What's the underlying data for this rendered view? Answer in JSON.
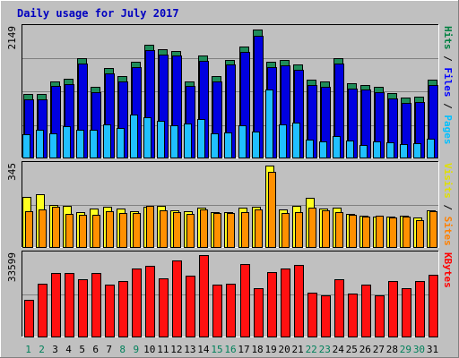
{
  "chart_data": {
    "type": "bar",
    "title": "Daily usage for July 2017",
    "days": [
      "1",
      "2",
      "3",
      "4",
      "5",
      "6",
      "7",
      "8",
      "9",
      "10",
      "11",
      "12",
      "13",
      "14",
      "15",
      "16",
      "17",
      "18",
      "19",
      "20",
      "21",
      "22",
      "23",
      "24",
      "25",
      "26",
      "27",
      "28",
      "29",
      "30",
      "31"
    ],
    "weekend_days": [
      "1",
      "2",
      "8",
      "9",
      "15",
      "16",
      "22",
      "23",
      "29",
      "30"
    ],
    "panels": [
      {
        "id": "hits-files-pages",
        "max_label": "2149",
        "ylim": [
          0,
          2149
        ],
        "legend": [
          {
            "text": "Pages",
            "color": "#00c0ff"
          },
          {
            "text": "Files",
            "color": "#0000ff"
          },
          {
            "text": "Hits",
            "color": "#008040"
          }
        ],
        "series": [
          {
            "name": "Hits",
            "color": "#1f8c5a",
            "values": [
              1054,
              1054,
              1274,
              1313,
              1657,
              1176,
              1489,
              1352,
              1591,
              1876,
              1809,
              1782,
              1274,
              1704,
              1361,
              1633,
              1846,
              2130,
              1591,
              1622,
              1556,
              1293,
              1273,
              1661,
              1233,
              1215,
              1176,
              1073,
              1000,
              1019,
              1294
            ]
          },
          {
            "name": "Files",
            "color": "#0000e0",
            "values": [
              966,
              966,
              1187,
              1225,
              1567,
              1088,
              1401,
              1264,
              1503,
              1788,
              1722,
              1695,
              1187,
              1617,
              1274,
              1546,
              1759,
              2036,
              1503,
              1534,
              1468,
              1206,
              1186,
              1573,
              1146,
              1127,
              1088,
              986,
              912,
              932,
              1206
            ]
          },
          {
            "name": "Pages",
            "color": "#20c0ff",
            "values": [
              386,
              465,
              396,
              526,
              464,
              465,
              555,
              493,
              723,
              669,
              618,
              533,
              571,
              639,
              408,
              416,
              534,
              426,
              1128,
              551,
              580,
              296,
              273,
              361,
              287,
              211,
              263,
              261,
              220,
              234,
              315
            ]
          }
        ]
      },
      {
        "id": "visits-sites",
        "max_label": "345",
        "ylim": [
          0,
          345
        ],
        "legend": [
          {
            "text": "Sites",
            "color": "#ff8000"
          },
          {
            "text": "Visits",
            "color": "#e0e000"
          }
        ],
        "series": [
          {
            "name": "Visits",
            "color": "#ffff20",
            "values": [
              212,
              222,
              178,
              173,
              146,
              162,
              172,
              163,
              151,
              172,
              176,
              156,
              151,
              166,
              148,
              148,
              166,
              171,
              345,
              161,
              176,
              207,
              162,
              166,
              139,
              133,
              128,
              129,
              133,
              124,
              155
            ]
          },
          {
            "name": "Sites",
            "color": "#ff9000",
            "values": [
              150,
              161,
              169,
              142,
              137,
              135,
              152,
              144,
              144,
              173,
              157,
              147,
              141,
              159,
              144,
              144,
              148,
              159,
              317,
              144,
              149,
              165,
              157,
              148,
              138,
              129,
              131,
              124,
              129,
              115,
              152
            ]
          }
        ]
      },
      {
        "id": "kbytes",
        "max_label": "33599",
        "ylim": [
          0,
          33599
        ],
        "legend": [
          {
            "text": "KBytes",
            "color": "#ff0000"
          }
        ],
        "series": [
          {
            "name": "KBytes",
            "color": "#ff1010",
            "values": [
              14955,
              21750,
              26180,
              26180,
              23455,
              26180,
              21325,
              22940,
              28220,
              28985,
              23880,
              31450,
              25245,
              33599,
              21325,
              21755,
              29920,
              19890,
              26520,
              27880,
              29410,
              17935,
              16915,
              23465,
              17680,
              21325,
              16915,
              22950,
              19810,
              22950,
              25500
            ]
          }
        ]
      }
    ]
  }
}
